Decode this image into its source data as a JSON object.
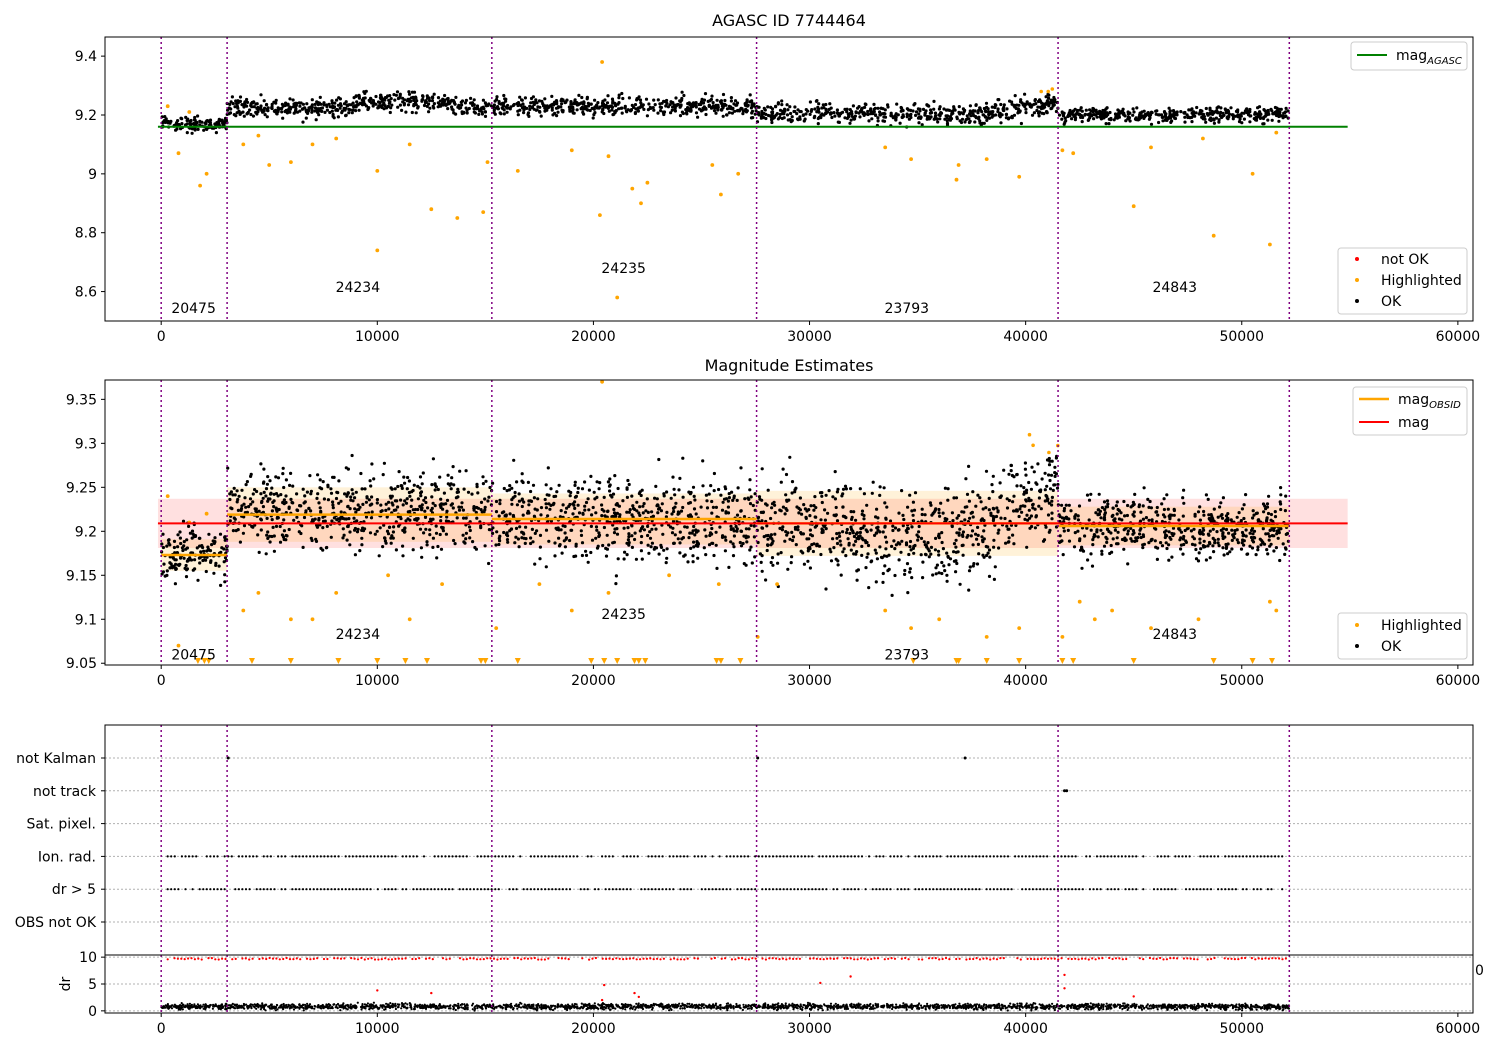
{
  "chart_data": [
    {
      "type": "scatter",
      "title": "AGASC ID 7744464",
      "xlim": [
        -2600,
        60700
      ],
      "ylim": [
        8.5,
        9.465
      ],
      "xticks": [
        0,
        10000,
        20000,
        30000,
        40000,
        50000,
        60000
      ],
      "yticks": [
        8.6,
        8.8,
        9.0,
        9.2,
        9.4
      ],
      "mag_agasc": 9.16,
      "mag_agasc_xrange": [
        -150,
        54900
      ],
      "obsid_boundaries": [
        0,
        3050,
        15300,
        27550,
        41500,
        52200
      ],
      "obsid_labels": [
        {
          "text": "20475",
          "x": 1500,
          "y": 8.545
        },
        {
          "text": "24234",
          "x": 9100,
          "y": 8.615
        },
        {
          "text": "24235",
          "x": 21400,
          "y": 8.68
        },
        {
          "text": "23793",
          "x": 34500,
          "y": 8.545
        },
        {
          "text": "24843",
          "x": 46900,
          "y": 8.615
        }
      ],
      "series": [
        {
          "name": "mag_AGASC",
          "color": "#008000",
          "kind": "line"
        },
        {
          "name": "not OK",
          "color": "#ff0000",
          "kind": "points"
        },
        {
          "name": "Highlighted",
          "color": "#ffa500",
          "kind": "points",
          "outliers": [
            [
              300,
              9.23
            ],
            [
              800,
              9.07
            ],
            [
              1300,
              9.21
            ],
            [
              1800,
              8.96
            ],
            [
              2100,
              9.0
            ],
            [
              3800,
              9.1
            ],
            [
              4500,
              9.13
            ],
            [
              5000,
              9.03
            ],
            [
              6000,
              9.04
            ],
            [
              7000,
              9.1
            ],
            [
              8100,
              9.12
            ],
            [
              10000,
              8.74
            ],
            [
              10000,
              9.01
            ],
            [
              11500,
              9.1
            ],
            [
              12500,
              8.88
            ],
            [
              13700,
              8.85
            ],
            [
              14900,
              8.87
            ],
            [
              15100,
              9.04
            ],
            [
              16500,
              9.01
            ],
            [
              19000,
              9.08
            ],
            [
              20300,
              8.86
            ],
            [
              20400,
              9.38
            ],
            [
              20700,
              9.06
            ],
            [
              21100,
              8.58
            ],
            [
              21800,
              8.95
            ],
            [
              22200,
              8.9
            ],
            [
              22500,
              8.97
            ],
            [
              25500,
              9.03
            ],
            [
              25900,
              8.93
            ],
            [
              26700,
              9.0
            ],
            [
              33500,
              9.09
            ],
            [
              34700,
              9.05
            ],
            [
              36800,
              8.98
            ],
            [
              36900,
              9.03
            ],
            [
              38200,
              9.05
            ],
            [
              39700,
              8.99
            ],
            [
              41700,
              9.08
            ],
            [
              42200,
              9.07
            ],
            [
              45000,
              8.89
            ],
            [
              45800,
              9.09
            ],
            [
              48700,
              8.79
            ],
            [
              48200,
              9.12
            ],
            [
              50500,
              9.0
            ],
            [
              51300,
              8.76
            ],
            [
              51600,
              9.14
            ]
          ]
        },
        {
          "name": "OK",
          "color": "#000000",
          "kind": "points"
        }
      ],
      "legend_top": {
        "placement": "top-right",
        "entries": [
          "mag_AGASC"
        ]
      },
      "legend_bottom": {
        "placement": "lower-right",
        "entries": [
          "not OK",
          "Highlighted",
          "OK"
        ]
      }
    },
    {
      "type": "scatter",
      "title": "Magnitude Estimates",
      "xlim": [
        -2600,
        60700
      ],
      "ylim": [
        9.048,
        9.372
      ],
      "xticks": [
        0,
        10000,
        20000,
        30000,
        40000,
        50000,
        60000
      ],
      "yticks": [
        9.05,
        9.1,
        9.15,
        9.2,
        9.25,
        9.3,
        9.35
      ],
      "mag": 9.209,
      "mag_band": [
        9.181,
        9.237
      ],
      "mag_xrange": [
        -150,
        54900
      ],
      "mag_obsid": [
        {
          "x0": 0,
          "x1": 3050,
          "value": 9.173,
          "band": [
            9.155,
            9.191
          ]
        },
        {
          "x0": 3050,
          "x1": 15300,
          "value": 9.219,
          "band": [
            9.188,
            9.25
          ]
        },
        {
          "x0": 15300,
          "x1": 27550,
          "value": 9.214,
          "band": [
            9.185,
            9.243
          ]
        },
        {
          "x0": 27550,
          "x1": 41500,
          "value": 9.209,
          "band": [
            9.172,
            9.246
          ]
        },
        {
          "x0": 41500,
          "x1": 52200,
          "value": 9.206,
          "band": [
            9.184,
            9.228
          ]
        }
      ],
      "obsid_boundaries": [
        0,
        3050,
        15300,
        27550,
        41500,
        52200
      ],
      "obsid_labels": [
        {
          "text": "20475",
          "x": 1500,
          "y": 9.06
        },
        {
          "text": "24234",
          "x": 9100,
          "y": 9.083
        },
        {
          "text": "24235",
          "x": 21400,
          "y": 9.106
        },
        {
          "text": "23793",
          "x": 34500,
          "y": 9.06
        },
        {
          "text": "24843",
          "x": 46900,
          "y": 9.083
        }
      ],
      "series": [
        {
          "name": "mag_OBSID",
          "color": "#ffa500",
          "kind": "line"
        },
        {
          "name": "mag",
          "color": "#ff0000",
          "kind": "line"
        },
        {
          "name": "Highlighted",
          "color": "#ffa500",
          "kind": "points",
          "outliers": [
            [
              300,
              9.24
            ],
            [
              800,
              9.07
            ],
            [
              1300,
              9.21
            ],
            [
              2100,
              9.22
            ],
            [
              3800,
              9.11
            ],
            [
              4500,
              9.13
            ],
            [
              6000,
              9.1
            ],
            [
              7000,
              9.1
            ],
            [
              8100,
              9.13
            ],
            [
              10500,
              9.15
            ],
            [
              11500,
              9.1
            ],
            [
              13000,
              9.14
            ],
            [
              15500,
              9.09
            ],
            [
              17500,
              9.14
            ],
            [
              19000,
              9.11
            ],
            [
              20400,
              9.37
            ],
            [
              20700,
              9.13
            ],
            [
              23500,
              9.15
            ],
            [
              25800,
              9.14
            ],
            [
              27600,
              9.08
            ],
            [
              28500,
              9.14
            ],
            [
              33500,
              9.11
            ],
            [
              34700,
              9.09
            ],
            [
              36000,
              9.1
            ],
            [
              38200,
              9.08
            ],
            [
              39700,
              9.09
            ],
            [
              41700,
              9.08
            ],
            [
              42500,
              9.12
            ],
            [
              43200,
              9.1
            ],
            [
              44000,
              9.11
            ],
            [
              45800,
              9.09
            ],
            [
              48000,
              9.1
            ],
            [
              51300,
              9.12
            ],
            [
              51600,
              9.11
            ]
          ]
        },
        {
          "name": "OK",
          "color": "#000000",
          "kind": "points"
        }
      ],
      "clipped_markers_x": [
        1700,
        2000,
        2200,
        4200,
        6000,
        8200,
        10000,
        11300,
        12300,
        14800,
        15000,
        16500,
        19900,
        20500,
        21100,
        21900,
        22100,
        22400,
        25700,
        25900,
        26800,
        34800,
        36800,
        36900,
        38200,
        39700,
        41700,
        42200,
        45000,
        48700,
        50500,
        51400
      ],
      "legend_top": {
        "placement": "top-right",
        "entries": [
          "mag_OBSID",
          "mag"
        ]
      },
      "legend_bottom": {
        "placement": "lower-right",
        "entries": [
          "Highlighted",
          "OK"
        ]
      }
    },
    {
      "type": "scatter",
      "title": "",
      "xlim": [
        -2600,
        60700
      ],
      "categories": [
        "not Kalman",
        "not track",
        "Sat. pixel.",
        "Ion. rad.",
        "dr > 5",
        "OBS not OK"
      ],
      "obsid_boundaries": [
        0,
        3050,
        15300,
        27550,
        41500,
        52200
      ],
      "flag_events": [
        {
          "category": "not Kalman",
          "x": [
            3100,
            27600,
            37200
          ]
        },
        {
          "category": "not track",
          "x": [
            41800,
            41900
          ]
        },
        {
          "category": "Ion. rad.",
          "x_range": [
            300,
            52200
          ],
          "sparse": true
        },
        {
          "category": "dr > 5",
          "x_range": [
            300,
            52200
          ],
          "sparse": true
        }
      ]
    },
    {
      "type": "scatter",
      "title": "",
      "ylabel": "dr",
      "xlim": [
        -2600,
        60700
      ],
      "ylim": [
        -0.4,
        10.4
      ],
      "xticks": [
        0,
        10000,
        20000,
        30000,
        40000,
        50000,
        60000
      ],
      "yticks": [
        0,
        5,
        10
      ],
      "obsid_boundaries": [
        0,
        3050,
        15300,
        27550,
        41500,
        52200
      ],
      "series": [
        {
          "name": "dr OK",
          "color": "#000000",
          "typical": [
            0.2,
            2.0
          ]
        },
        {
          "name": "dr not OK",
          "color": "#ff0000",
          "typical": 9.7,
          "outliers": [
            [
              10000,
              3.8
            ],
            [
              12500,
              3.3
            ],
            [
              20500,
              4.8
            ],
            [
              20400,
              2.0
            ],
            [
              21900,
              3.3
            ],
            [
              22100,
              2.6
            ],
            [
              30500,
              5.2
            ],
            [
              31900,
              6.4
            ],
            [
              41800,
              6.7
            ],
            [
              45000,
              2.7
            ],
            [
              41800,
              4.2
            ]
          ]
        }
      ],
      "stray_tick_label": "0"
    }
  ]
}
